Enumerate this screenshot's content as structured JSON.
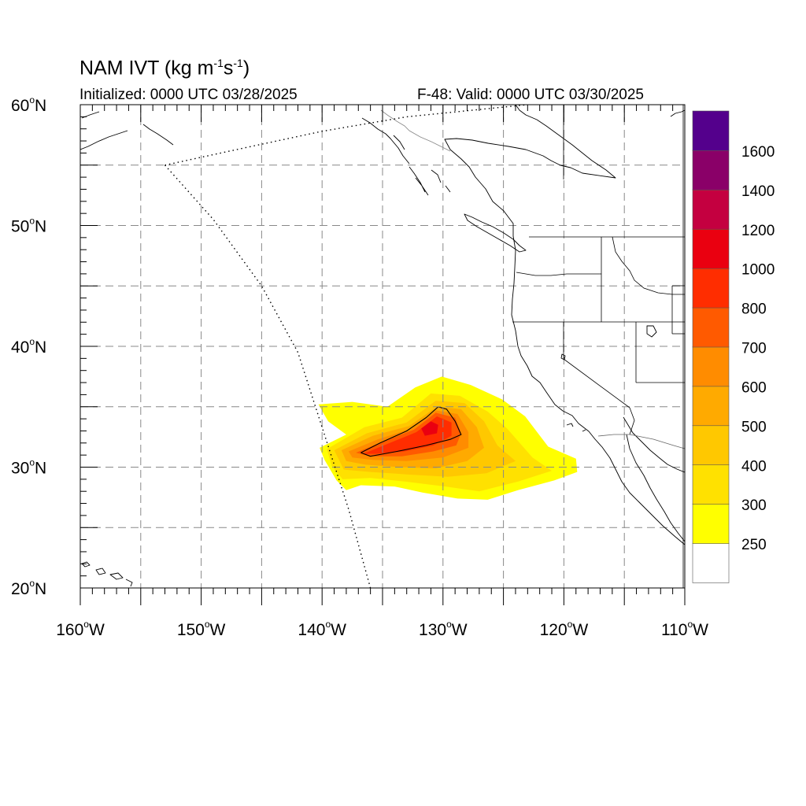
{
  "title": {
    "main": "NAM IVT",
    "units_open": " (kg m",
    "units_exp1": "-1",
    "units_mid": "s",
    "units_exp2": "-1",
    "units_close": ")"
  },
  "initialized": "Initialized: 0000 UTC 03/28/2025",
  "valid": "F-48: Valid: 0000 UTC 03/30/2025",
  "map": {
    "lon_range": [
      -160,
      -110
    ],
    "lat_range": [
      20,
      60
    ],
    "lat_ticks": [
      {
        "value": 60,
        "label": "60"
      },
      {
        "value": 50,
        "label": "50"
      },
      {
        "value": 40,
        "label": "40"
      },
      {
        "value": 30,
        "label": "30"
      },
      {
        "value": 20,
        "label": "20"
      }
    ],
    "lat_suffix": "N",
    "lon_ticks": [
      {
        "value": -160,
        "label": "160"
      },
      {
        "value": -150,
        "label": "150"
      },
      {
        "value": -140,
        "label": "140"
      },
      {
        "value": -130,
        "label": "130"
      },
      {
        "value": -120,
        "label": "120"
      },
      {
        "value": -110,
        "label": "110"
      }
    ],
    "lon_suffix": "W",
    "grid_interval_deg": 5,
    "gridlines": "dashed"
  },
  "colorbar": {
    "levels": [
      "250",
      "300",
      "400",
      "500",
      "600",
      "700",
      "800",
      "1000",
      "1200",
      "1400",
      "1600"
    ],
    "colors": [
      "#ffffff",
      "#ffff00",
      "#ffe100",
      "#ffc800",
      "#ffaa00",
      "#ff8c00",
      "#ff5a00",
      "#ff2d00",
      "#ea0010",
      "#c40040",
      "#8a0068",
      "#54008c"
    ]
  },
  "ivt_field": {
    "description_levels": [
      {
        "level": 250,
        "color": "#ffff00",
        "outline_lonlat": [
          [
            -140.3,
            35.2
          ],
          [
            -137.5,
            35.4
          ],
          [
            -134.6,
            35.0
          ],
          [
            -132.3,
            36.6
          ],
          [
            -130.1,
            37.5
          ],
          [
            -127.7,
            36.8
          ],
          [
            -125.1,
            35.6
          ],
          [
            -123.2,
            34.2
          ],
          [
            -121.3,
            31.7
          ],
          [
            -119.0,
            30.7
          ],
          [
            -118.9,
            29.6
          ],
          [
            -120.8,
            28.9
          ],
          [
            -123.8,
            28.1
          ],
          [
            -126.3,
            27.3
          ],
          [
            -128.8,
            27.4
          ],
          [
            -131.7,
            27.9
          ],
          [
            -134.0,
            28.4
          ],
          [
            -136.8,
            28.5
          ],
          [
            -138.0,
            28.1
          ],
          [
            -138.8,
            28.9
          ],
          [
            -139.8,
            30.6
          ],
          [
            -140.2,
            31.6
          ],
          [
            -138.0,
            32.7
          ],
          [
            -139.5,
            33.8
          ]
        ]
      },
      {
        "level": 300,
        "color": "#ffe100",
        "outline_lonlat": [
          [
            -139.6,
            31.5
          ],
          [
            -136.5,
            33.3
          ],
          [
            -133.4,
            34.1
          ],
          [
            -131.0,
            36.1
          ],
          [
            -128.6,
            35.9
          ],
          [
            -126.3,
            34.6
          ],
          [
            -124.7,
            33.2
          ],
          [
            -122.6,
            30.8
          ],
          [
            -121.0,
            29.7
          ],
          [
            -123.8,
            28.8
          ],
          [
            -127.0,
            28.0
          ],
          [
            -129.8,
            28.4
          ],
          [
            -133.1,
            28.8
          ],
          [
            -136.0,
            29.1
          ],
          [
            -138.3,
            29.0
          ],
          [
            -139.2,
            30.1
          ]
        ]
      },
      {
        "level": 400,
        "color": "#ffc800",
        "outline_lonlat": [
          [
            -139.0,
            31.4
          ],
          [
            -136.3,
            32.8
          ],
          [
            -133.0,
            33.7
          ],
          [
            -130.6,
            35.5
          ],
          [
            -128.2,
            35.3
          ],
          [
            -126.6,
            33.8
          ],
          [
            -125.5,
            31.8
          ],
          [
            -124.0,
            30.5
          ],
          [
            -126.4,
            29.5
          ],
          [
            -129.6,
            29.2
          ],
          [
            -133.0,
            29.4
          ],
          [
            -136.0,
            29.6
          ],
          [
            -138.2,
            29.8
          ]
        ]
      },
      {
        "level": 500,
        "color": "#ffaa00",
        "outline_lonlat": [
          [
            -138.4,
            31.4
          ],
          [
            -135.8,
            32.6
          ],
          [
            -132.8,
            33.4
          ],
          [
            -130.5,
            35.0
          ],
          [
            -128.5,
            34.8
          ],
          [
            -127.2,
            33.3
          ],
          [
            -126.6,
            31.6
          ],
          [
            -128.0,
            30.5
          ],
          [
            -130.6,
            29.9
          ],
          [
            -133.6,
            30.0
          ],
          [
            -136.4,
            30.2
          ],
          [
            -138.0,
            30.5
          ]
        ]
      },
      {
        "level": 600,
        "color": "#ff8c00",
        "outline_lonlat": [
          [
            -137.8,
            31.3
          ],
          [
            -135.4,
            32.3
          ],
          [
            -132.6,
            33.2
          ],
          [
            -130.6,
            34.7
          ],
          [
            -128.8,
            34.4
          ],
          [
            -127.9,
            32.9
          ],
          [
            -127.9,
            31.6
          ],
          [
            -130.0,
            30.8
          ],
          [
            -133.0,
            30.5
          ],
          [
            -135.8,
            30.6
          ],
          [
            -137.5,
            30.8
          ]
        ]
      },
      {
        "level": 700,
        "color": "#ff5a00",
        "outline_lonlat": [
          [
            -137.2,
            31.2
          ],
          [
            -135.0,
            32.1
          ],
          [
            -132.4,
            33.1
          ],
          [
            -130.6,
            34.5
          ],
          [
            -129.0,
            34.1
          ],
          [
            -128.5,
            32.8
          ],
          [
            -128.9,
            31.8
          ],
          [
            -130.8,
            31.3
          ],
          [
            -133.4,
            30.9
          ],
          [
            -136.0,
            30.9
          ]
        ]
      },
      {
        "level": 800,
        "color": "#ff2d00",
        "outline_lonlat": [
          [
            -136.6,
            31.1
          ],
          [
            -134.4,
            32.0
          ],
          [
            -132.2,
            32.9
          ],
          [
            -130.5,
            34.2
          ],
          [
            -129.3,
            33.7
          ],
          [
            -129.3,
            32.6
          ],
          [
            -130.8,
            31.8
          ],
          [
            -133.2,
            31.3
          ],
          [
            -135.6,
            31.1
          ]
        ]
      },
      {
        "level": 1000,
        "color": "#ea0010",
        "outline_lonlat": [
          [
            -131.8,
            33.2
          ],
          [
            -131.0,
            33.8
          ],
          [
            -130.4,
            33.5
          ],
          [
            -130.5,
            32.8
          ],
          [
            -131.5,
            32.6
          ]
        ]
      }
    ],
    "contour_line_lonlat": [
      [
        -136.8,
        31.2
      ],
      [
        -135.2,
        32.0
      ],
      [
        -133.0,
        33.0
      ],
      [
        -131.4,
        34.1
      ],
      [
        -130.4,
        35.0
      ],
      [
        -129.7,
        34.8
      ],
      [
        -129.0,
        33.8
      ],
      [
        -128.5,
        32.7
      ],
      [
        -129.4,
        32.3
      ],
      [
        -131.4,
        31.8
      ],
      [
        -133.8,
        31.3
      ],
      [
        -136.0,
        30.9
      ],
      [
        -136.8,
        31.2
      ]
    ]
  },
  "domain_boundary_lonlat": [
    [
      -153.0,
      55.0
    ],
    [
      -149.0,
      50.5
    ],
    [
      -145.0,
      45.0
    ],
    [
      -142.0,
      39.5
    ],
    [
      -139.9,
      33.0
    ],
    [
      -137.8,
      26.5
    ],
    [
      -136.0,
      20.0
    ]
  ],
  "domain_boundary_top_lonlat": [
    [
      -153.0,
      55.0
    ],
    [
      -147.0,
      56.3
    ],
    [
      -140.0,
      57.8
    ],
    [
      -133.0,
      59.0
    ],
    [
      -126.0,
      59.7
    ],
    [
      -123.0,
      60.0
    ]
  ]
}
